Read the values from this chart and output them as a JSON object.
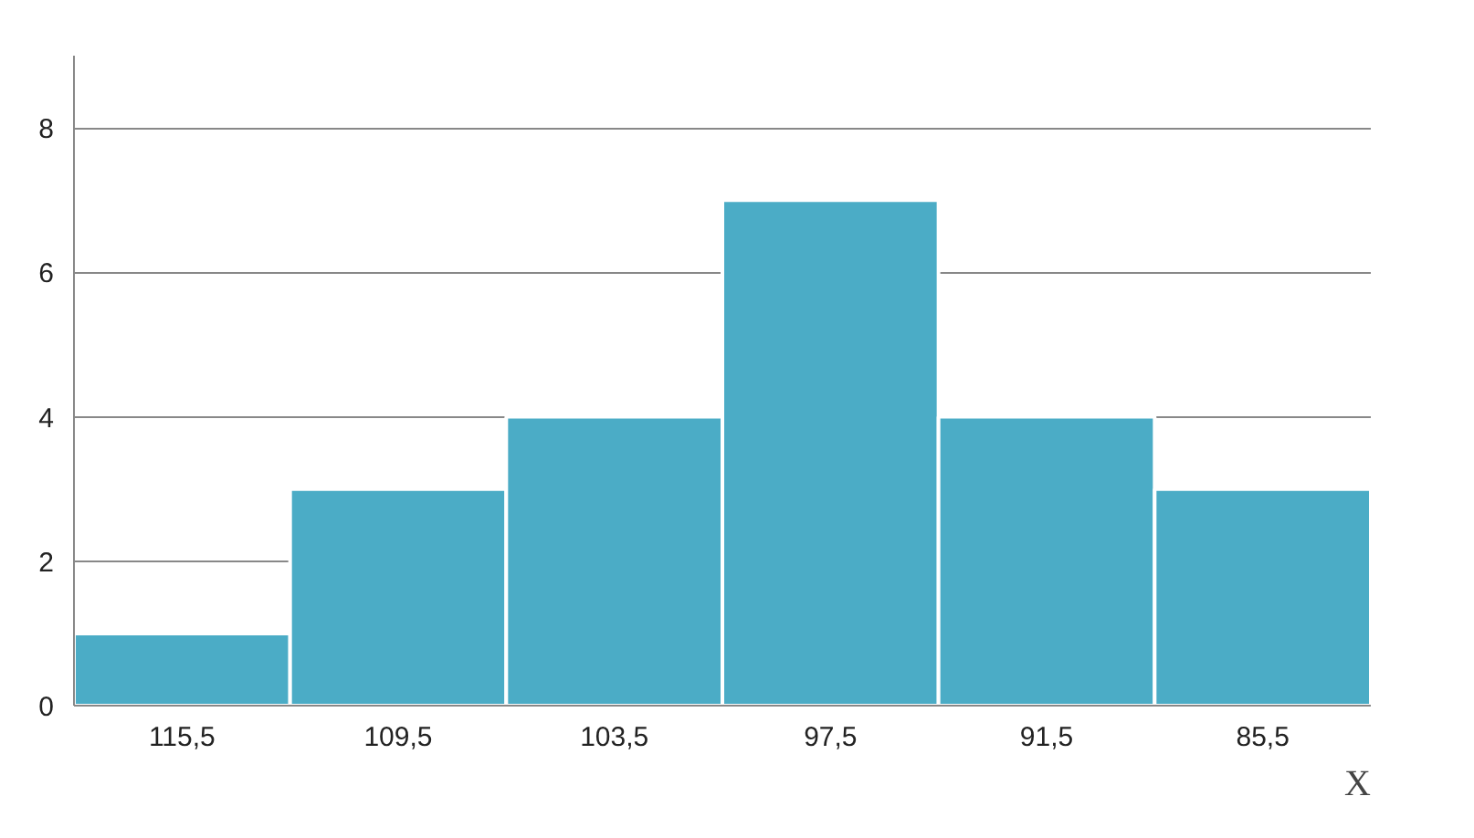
{
  "chart_data": {
    "type": "bar",
    "xlabel": "X",
    "categories": [
      "115,5",
      "109,5",
      "103,5",
      "97,5",
      "91,5",
      "85,5"
    ],
    "values": [
      1,
      3,
      4,
      7,
      4,
      3
    ],
    "color": "#4bacc6",
    "ylim": [
      0,
      9
    ],
    "yticks": [
      0,
      2,
      4,
      6,
      8
    ],
    "grid": "y"
  }
}
